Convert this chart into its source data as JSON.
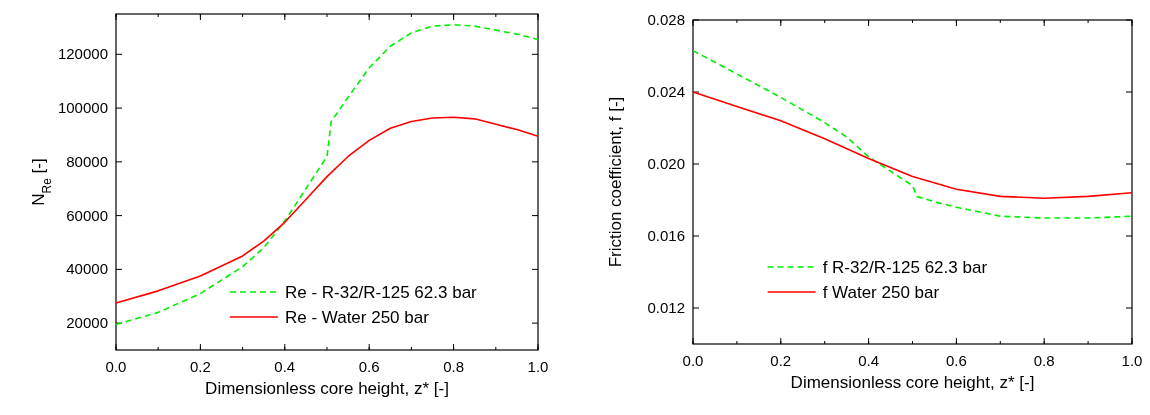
{
  "chart_data": [
    {
      "type": "line",
      "xlabel": "Dimensionless core height, z* [-]",
      "ylabel": "N$_{Re}$ [-]",
      "xlim": [
        0,
        1
      ],
      "xticks": [
        {
          "value": 0,
          "label": "0.0"
        },
        {
          "value": 0.2,
          "label": "0.2"
        },
        {
          "value": 0.4,
          "label": "0.4"
        },
        {
          "value": 0.6,
          "label": "0.6"
        },
        {
          "value": 0.8,
          "label": "0.8"
        },
        {
          "value": 1,
          "label": "1.0"
        }
      ],
      "ylim": [
        10000,
        135000
      ],
      "yticks": [
        20000,
        40000,
        60000,
        80000,
        100000,
        120000
      ],
      "legend": "bottom right",
      "grid": false,
      "series": [
        {
          "name": "Re - R-32/R-125 62.3 bar",
          "color": "#00ee00",
          "line_style": "dashed",
          "x": [
            0,
            0.1,
            0.2,
            0.3,
            0.35,
            0.4,
            0.45,
            0.5,
            0.51,
            0.55,
            0.6,
            0.65,
            0.7,
            0.75,
            0.8,
            0.85,
            0.9,
            0.95,
            1
          ],
          "values": [
            19500,
            24000,
            31000,
            41000,
            48000,
            58000,
            70000,
            82000,
            95000,
            104000,
            115000,
            123000,
            128000,
            130500,
            131000,
            130500,
            129000,
            127500,
            125500
          ]
        },
        {
          "name": "Re - Water 250 bar",
          "color": "#ff0000",
          "line_style": "solid",
          "x": [
            0,
            0.1,
            0.2,
            0.3,
            0.35,
            0.4,
            0.45,
            0.5,
            0.55,
            0.6,
            0.65,
            0.7,
            0.75,
            0.8,
            0.85,
            0.9,
            0.95,
            1
          ],
          "values": [
            27500,
            32000,
            37500,
            45000,
            50500,
            57500,
            66000,
            74500,
            82000,
            88000,
            92500,
            95000,
            96300,
            96600,
            96000,
            94000,
            92000,
            89500
          ]
        }
      ]
    },
    {
      "type": "line",
      "xlabel": "Dimensionless core height, z* [-]",
      "ylabel": "Friction coefficient, f [-]",
      "xlim": [
        0,
        1
      ],
      "xticks": [
        {
          "value": 0,
          "label": "0.0"
        },
        {
          "value": 0.2,
          "label": "0.2"
        },
        {
          "value": 0.4,
          "label": "0.4"
        },
        {
          "value": 0.6,
          "label": "0.6"
        },
        {
          "value": 0.8,
          "label": "0.8"
        },
        {
          "value": 1,
          "label": "1.0"
        }
      ],
      "ylim": [
        0.01,
        0.028
      ],
      "yticks": [
        0.012,
        0.016,
        {
          "value": 0.02,
          "label": "0.020"
        },
        0.024,
        0.028
      ],
      "legend": "bottom",
      "grid": false,
      "series": [
        {
          "name": "f  R-32/R-125 62.3 bar",
          "color": "#00ee00",
          "line_style": "dashed",
          "x": [
            0,
            0.1,
            0.2,
            0.3,
            0.35,
            0.4,
            0.45,
            0.5,
            0.51,
            0.55,
            0.6,
            0.7,
            0.8,
            0.9,
            1
          ],
          "values": [
            0.0263,
            0.025,
            0.0237,
            0.0223,
            0.0215,
            0.0204,
            0.0196,
            0.0188,
            0.0182,
            0.0179,
            0.0176,
            0.0171,
            0.017,
            0.017,
            0.0171
          ]
        },
        {
          "name": "f  Water 250 bar",
          "color": "#ff0000",
          "line_style": "solid",
          "x": [
            0,
            0.1,
            0.2,
            0.3,
            0.4,
            0.5,
            0.6,
            0.7,
            0.8,
            0.9,
            1
          ],
          "values": [
            0.024,
            0.0232,
            0.0224,
            0.0214,
            0.0203,
            0.0193,
            0.0186,
            0.0182,
            0.0181,
            0.0182,
            0.0184
          ]
        }
      ]
    }
  ]
}
